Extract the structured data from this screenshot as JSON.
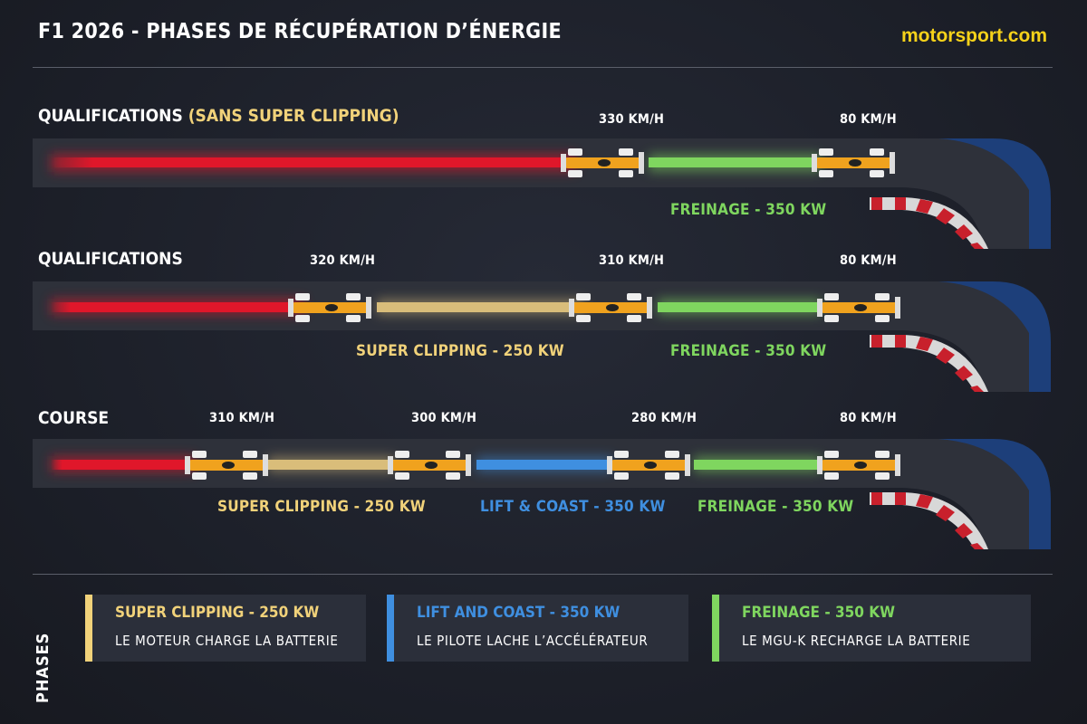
{
  "header": {
    "title": "F1 2026 - PHASES DE RÉCUPÉRATION D’ÉNERGIE",
    "brand": "motorsport.com"
  },
  "scenarios": [
    {
      "label": "QUALIFICATIONS",
      "label_highlight": "(SANS SUPER CLIPPING)",
      "speeds": [
        "330 KM/H",
        "80 KM/H"
      ],
      "phases": [
        "FREINAGE - 350 KW"
      ]
    },
    {
      "label": "QUALIFICATIONS",
      "speeds": [
        "320 KM/H",
        "310 KM/H",
        "80 KM/H"
      ],
      "phases": [
        "SUPER CLIPPING - 250 KW",
        "FREINAGE - 350 KW"
      ]
    },
    {
      "label": "COURSE",
      "speeds": [
        "310 KM/H",
        "300 KM/H",
        "280 KM/H",
        "80 KM/H"
      ],
      "phases": [
        "SUPER CLIPPING - 250 KW",
        "LIFT & COAST - 350 KW",
        "FREINAGE - 350 KW"
      ]
    }
  ],
  "legend": {
    "heading": "PHASES",
    "items": [
      {
        "title": "SUPER CLIPPING - 250 KW",
        "desc": "LE MOTEUR CHARGE  LA BATTERIE",
        "color": "#f1d27a"
      },
      {
        "title": "LIFT AND COAST - 350 KW",
        "desc": "LE PILOTE LACHE L’ACCÉLÉRATEUR",
        "color": "#3f8fe0"
      },
      {
        "title": "FREINAGE - 350 KW",
        "desc": "LE MGU-K RECHARGE LA BATTERIE",
        "color": "#7fd65f"
      }
    ]
  },
  "colors": {
    "power": "#e0172a",
    "super_clipping": "#d9bd7a",
    "lift_coast": "#3f8fe0",
    "braking": "#7fd65f",
    "car_body": "#f0a21e",
    "brand": "#f6d21a"
  }
}
